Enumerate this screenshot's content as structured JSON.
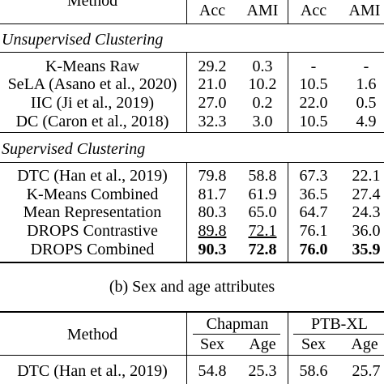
{
  "table_a": {
    "header": {
      "method": "Method",
      "acc1": "Acc",
      "ami1": "AMI",
      "acc2": "Acc",
      "ami2": "AMI"
    },
    "section_unsup": "Unsupervised Clustering",
    "unsup_rows": [
      {
        "method": "K-Means Raw",
        "v1": "29.2",
        "v2": "0.3",
        "v3": "-",
        "v4": "-"
      },
      {
        "method": "SeLA (Asano et al., 2020)",
        "v1": "21.0",
        "v2": "10.2",
        "v3": "10.5",
        "v4": "1.6"
      },
      {
        "method": "IIC (Ji et al., 2019)",
        "v1": "27.0",
        "v2": "0.2",
        "v3": "22.0",
        "v4": "0.5"
      },
      {
        "method": "DC (Caron et al., 2018)",
        "v1": "32.3",
        "v2": "3.0",
        "v3": "10.5",
        "v4": "4.9"
      }
    ],
    "section_sup": "Supervised Clustering",
    "sup_rows": [
      {
        "method": "DTC (Han et al., 2019)",
        "v1": "79.8",
        "v2": "58.8",
        "v3": "67.3",
        "v4": "22.1"
      },
      {
        "method": "K-Means Combined",
        "v1": "81.7",
        "v2": "61.9",
        "v3": "36.5",
        "v4": "27.4"
      },
      {
        "method": "Mean Representation",
        "v1": "80.3",
        "v2": "65.0",
        "v3": "64.7",
        "v4": "24.3"
      },
      {
        "method": "DROPS Contrastive",
        "v1": "89.8",
        "v2": "72.1",
        "v3": "76.1",
        "v4": "36.0"
      },
      {
        "method": "DROPS Combined",
        "v1": "90.3",
        "v2": "72.8",
        "v3": "76.0",
        "v4": "35.9"
      }
    ]
  },
  "caption_b": "(b) Sex and age attributes",
  "table_b": {
    "method": "Method",
    "group1": "Chapman",
    "group2": "PTB-XL",
    "sub1": "Sex",
    "sub2": "Age",
    "sub3": "Sex",
    "sub4": "Age",
    "rows": [
      {
        "method": "DTC (Han et al., 2019)",
        "v1": "54.8",
        "v2": "25.3",
        "v3": "58.6",
        "v4": "25.7"
      }
    ]
  }
}
